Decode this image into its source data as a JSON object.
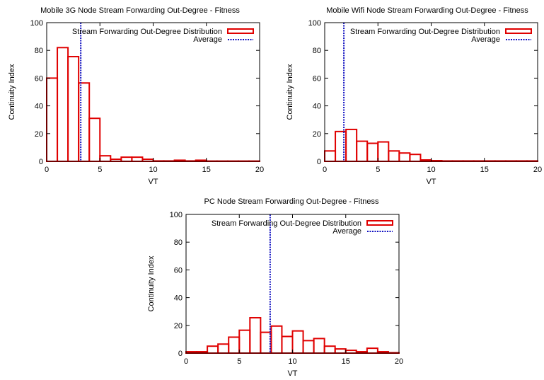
{
  "chart_data": [
    {
      "type": "bar",
      "title": "Mobile 3G Node Stream Forwarding Out-Degree - Fitness",
      "xlabel": "VT",
      "ylabel": "Continuity Index",
      "xlim": [
        0,
        20
      ],
      "ylim": [
        0,
        100
      ],
      "xticks": [
        0,
        5,
        10,
        15,
        20
      ],
      "yticks": [
        0,
        20,
        40,
        60,
        80,
        100
      ],
      "bin_width": 1,
      "x": [
        0,
        1,
        2,
        3,
        4,
        5,
        6,
        7,
        8,
        9,
        10,
        11,
        12,
        13,
        14,
        15,
        16,
        17,
        18,
        19,
        20
      ],
      "values": [
        60,
        82,
        75.5,
        56.5,
        31,
        4,
        1.5,
        3,
        3,
        1.5,
        0.3,
        0.3,
        0.8,
        0.3,
        0.8,
        0.2,
        0.2,
        0.2,
        0.2,
        0.2,
        0.2
      ],
      "average": 3.2,
      "grid": false,
      "legend_position": "top-right",
      "legend": [
        "Stream Forwarding Out-Degree Distribution",
        "Average"
      ]
    },
    {
      "type": "bar",
      "title": "Mobile Wifi Node Stream Forwarding Out-Degree - Fitness",
      "xlabel": "VT",
      "ylabel": "Continuity Index",
      "xlim": [
        0,
        20
      ],
      "ylim": [
        0,
        100
      ],
      "xticks": [
        0,
        5,
        10,
        15,
        20
      ],
      "yticks": [
        0,
        20,
        40,
        60,
        80,
        100
      ],
      "bin_width": 1,
      "x": [
        0,
        1,
        2,
        3,
        4,
        5,
        6,
        7,
        8,
        9,
        10,
        11,
        12,
        13,
        14,
        15,
        16,
        17,
        18,
        19,
        20
      ],
      "values": [
        7.5,
        21.5,
        23,
        14.5,
        13,
        14,
        7.5,
        6,
        5,
        1,
        0.5,
        0.3,
        0.3,
        0.3,
        0.3,
        0.3,
        0.3,
        0.3,
        0.3,
        0.3,
        0.3
      ],
      "average": 1.8,
      "grid": false,
      "legend_position": "top-right",
      "legend": [
        "Stream Forwarding Out-Degree Distribution",
        "Average"
      ]
    },
    {
      "type": "bar",
      "title": "PC Node Stream Forwarding Out-Degree - Fitness",
      "xlabel": "VT",
      "ylabel": "Continuity Index",
      "xlim": [
        0,
        20
      ],
      "ylim": [
        0,
        100
      ],
      "xticks": [
        0,
        5,
        10,
        15,
        20
      ],
      "yticks": [
        0,
        20,
        40,
        60,
        80,
        100
      ],
      "bin_width": 1,
      "x": [
        0,
        1,
        2,
        3,
        4,
        5,
        6,
        7,
        8,
        9,
        10,
        11,
        12,
        13,
        14,
        15,
        16,
        17,
        18,
        19,
        20
      ],
      "values": [
        1,
        1,
        5,
        6.5,
        11.5,
        16.5,
        25.5,
        15,
        19.5,
        12,
        16,
        9,
        10.5,
        5,
        3,
        2,
        1,
        3.5,
        1,
        0.3,
        1
      ],
      "average": 7.9,
      "grid": false,
      "legend_position": "top-right",
      "legend": [
        "Stream Forwarding Out-Degree Distribution",
        "Average"
      ]
    }
  ]
}
